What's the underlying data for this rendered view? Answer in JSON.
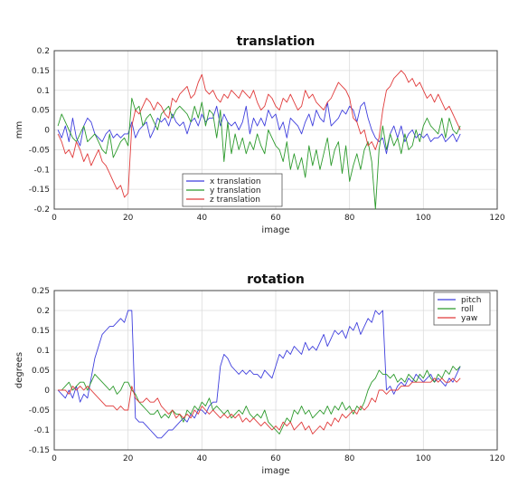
{
  "chart_data": [
    {
      "type": "line",
      "title": "translation",
      "xlabel": "image",
      "ylabel": "mm",
      "xlim": [
        0,
        120
      ],
      "ylim": [
        -0.2,
        0.2
      ],
      "xticks": [
        0,
        20,
        40,
        60,
        80,
        100,
        120
      ],
      "xtick_labels": [
        "0",
        "20",
        "40",
        "60",
        "80",
        "100",
        "120"
      ],
      "yticks": [
        -0.2,
        -0.15,
        -0.1,
        -0.05,
        0,
        0.05,
        0.1,
        0.15,
        0.2
      ],
      "ytick_labels": [
        "-0.2",
        "-0.15",
        "-0.1",
        "-0.05",
        "0",
        "0.05",
        "0.1",
        "0.15",
        "0.2"
      ],
      "grid": true,
      "legend_position": "bottom-center",
      "x": [
        1,
        2,
        3,
        4,
        5,
        6,
        7,
        8,
        9,
        10,
        11,
        12,
        13,
        14,
        15,
        16,
        17,
        18,
        19,
        20,
        21,
        22,
        23,
        24,
        25,
        26,
        27,
        28,
        29,
        30,
        31,
        32,
        33,
        34,
        35,
        36,
        37,
        38,
        39,
        40,
        41,
        42,
        43,
        44,
        45,
        46,
        47,
        48,
        49,
        50,
        51,
        52,
        53,
        54,
        55,
        56,
        57,
        58,
        59,
        60,
        61,
        62,
        63,
        64,
        65,
        66,
        67,
        68,
        69,
        70,
        71,
        72,
        73,
        74,
        75,
        76,
        77,
        78,
        79,
        80,
        81,
        82,
        83,
        84,
        85,
        86,
        87,
        88,
        89,
        90,
        91,
        92,
        93,
        94,
        95,
        96,
        97,
        98,
        99,
        100,
        101,
        102,
        103,
        104,
        105,
        106,
        107,
        108,
        109,
        110
      ],
      "series": [
        {
          "name": "x translation",
          "color": "#3f3fdd",
          "values": [
            0.0,
            -0.02,
            0.01,
            -0.03,
            0.03,
            -0.02,
            -0.04,
            0.01,
            0.03,
            0.02,
            -0.01,
            -0.02,
            -0.03,
            -0.01,
            0.0,
            -0.02,
            -0.01,
            -0.02,
            -0.01,
            -0.01,
            0.02,
            -0.02,
            0.0,
            0.01,
            0.02,
            -0.02,
            0.0,
            0.03,
            0.02,
            0.03,
            0.01,
            0.04,
            0.02,
            0.01,
            0.02,
            -0.01,
            0.02,
            0.03,
            0.01,
            0.04,
            0.02,
            0.03,
            0.03,
            0.06,
            0.01,
            0.04,
            0.02,
            0.01,
            0.02,
            0.0,
            0.02,
            0.06,
            -0.01,
            0.03,
            0.01,
            0.03,
            0.01,
            0.05,
            0.03,
            0.04,
            0.0,
            0.02,
            -0.02,
            0.03,
            0.02,
            0.01,
            -0.01,
            0.02,
            0.04,
            0.01,
            0.05,
            0.03,
            0.02,
            0.07,
            0.01,
            0.02,
            0.03,
            0.05,
            0.04,
            0.06,
            0.05,
            0.02,
            0.06,
            0.07,
            0.03,
            0.0,
            -0.02,
            -0.03,
            -0.02,
            -0.06,
            -0.01,
            0.01,
            -0.02,
            0.01,
            -0.03,
            -0.01,
            0.0,
            -0.02,
            -0.01,
            -0.02,
            -0.01,
            -0.03,
            -0.02,
            -0.02,
            -0.01,
            -0.03,
            -0.02,
            -0.01,
            -0.03,
            -0.01
          ]
        },
        {
          "name": "y translation",
          "color": "#2c9a2c",
          "values": [
            0.01,
            0.04,
            0.02,
            0.0,
            -0.02,
            -0.03,
            -0.01,
            0.01,
            -0.03,
            -0.02,
            -0.01,
            -0.03,
            -0.05,
            -0.06,
            -0.01,
            -0.07,
            -0.05,
            -0.03,
            -0.02,
            -0.04,
            0.08,
            0.05,
            0.06,
            0.01,
            0.03,
            0.04,
            0.02,
            0.0,
            0.04,
            0.05,
            0.06,
            0.03,
            0.05,
            0.06,
            0.05,
            0.04,
            0.02,
            0.06,
            0.03,
            0.07,
            0.01,
            0.05,
            0.04,
            -0.02,
            0.05,
            -0.08,
            0.02,
            -0.06,
            -0.01,
            -0.05,
            -0.02,
            -0.06,
            -0.03,
            -0.05,
            -0.01,
            -0.04,
            -0.06,
            0.0,
            -0.02,
            -0.04,
            -0.05,
            -0.08,
            -0.03,
            -0.1,
            -0.06,
            -0.1,
            -0.07,
            -0.12,
            -0.04,
            -0.09,
            -0.05,
            -0.1,
            -0.06,
            -0.02,
            -0.09,
            -0.05,
            -0.03,
            -0.11,
            -0.04,
            -0.13,
            -0.09,
            -0.06,
            -0.1,
            -0.05,
            -0.03,
            -0.08,
            -0.2,
            -0.05,
            0.01,
            -0.05,
            -0.01,
            -0.04,
            -0.02,
            -0.06,
            -0.01,
            -0.05,
            -0.04,
            0.0,
            -0.03,
            0.01,
            0.03,
            0.01,
            0.0,
            -0.01,
            0.03,
            -0.02,
            0.03,
            0.0,
            -0.01,
            0.01
          ]
        },
        {
          "name": "z translation",
          "color": "#e03a3a",
          "values": [
            -0.01,
            -0.03,
            -0.06,
            -0.05,
            -0.07,
            -0.03,
            -0.05,
            -0.08,
            -0.06,
            -0.09,
            -0.07,
            -0.05,
            -0.08,
            -0.09,
            -0.11,
            -0.13,
            -0.15,
            -0.14,
            -0.17,
            -0.16,
            0.01,
            0.05,
            0.04,
            0.06,
            0.08,
            0.07,
            0.05,
            0.07,
            0.06,
            0.04,
            0.03,
            0.08,
            0.07,
            0.09,
            0.1,
            0.11,
            0.08,
            0.09,
            0.12,
            0.14,
            0.1,
            0.09,
            0.1,
            0.08,
            0.07,
            0.09,
            0.08,
            0.1,
            0.09,
            0.08,
            0.1,
            0.09,
            0.08,
            0.1,
            0.07,
            0.05,
            0.06,
            0.09,
            0.08,
            0.06,
            0.05,
            0.08,
            0.07,
            0.09,
            0.07,
            0.05,
            0.06,
            0.1,
            0.08,
            0.09,
            0.07,
            0.06,
            0.05,
            0.07,
            0.08,
            0.1,
            0.12,
            0.11,
            0.1,
            0.08,
            0.03,
            0.02,
            -0.01,
            0.0,
            -0.04,
            -0.03,
            -0.05,
            -0.02,
            0.05,
            0.1,
            0.11,
            0.13,
            0.14,
            0.15,
            0.14,
            0.12,
            0.13,
            0.11,
            0.12,
            0.1,
            0.08,
            0.09,
            0.07,
            0.09,
            0.07,
            0.05,
            0.06,
            0.04,
            0.02,
            0.0
          ]
        }
      ]
    },
    {
      "type": "line",
      "title": "rotation",
      "xlabel": "image",
      "ylabel": "degrees",
      "xlim": [
        0,
        120
      ],
      "ylim": [
        -0.15,
        0.25
      ],
      "xticks": [
        0,
        20,
        40,
        60,
        80,
        100,
        120
      ],
      "xtick_labels": [
        "0",
        "20",
        "40",
        "60",
        "80",
        "100",
        "120"
      ],
      "yticks": [
        -0.15,
        -0.1,
        -0.05,
        0,
        0.05,
        0.1,
        0.15,
        0.2,
        0.25
      ],
      "ytick_labels": [
        "-0.15",
        "-0.1",
        "-0.05",
        "0",
        "0.05",
        "0.1",
        "0.15",
        "0.2",
        "0.25"
      ],
      "grid": true,
      "legend_position": "top-right",
      "x": [
        1,
        2,
        3,
        4,
        5,
        6,
        7,
        8,
        9,
        10,
        11,
        12,
        13,
        14,
        15,
        16,
        17,
        18,
        19,
        20,
        21,
        22,
        23,
        24,
        25,
        26,
        27,
        28,
        29,
        30,
        31,
        32,
        33,
        34,
        35,
        36,
        37,
        38,
        39,
        40,
        41,
        42,
        43,
        44,
        45,
        46,
        47,
        48,
        49,
        50,
        51,
        52,
        53,
        54,
        55,
        56,
        57,
        58,
        59,
        60,
        61,
        62,
        63,
        64,
        65,
        66,
        67,
        68,
        69,
        70,
        71,
        72,
        73,
        74,
        75,
        76,
        77,
        78,
        79,
        80,
        81,
        82,
        83,
        84,
        85,
        86,
        87,
        88,
        89,
        90,
        91,
        92,
        93,
        94,
        95,
        96,
        97,
        98,
        99,
        100,
        101,
        102,
        103,
        104,
        105,
        106,
        107,
        108,
        109,
        110
      ],
      "series": [
        {
          "name": "pitch",
          "color": "#3f3fdd",
          "values": [
            0.0,
            -0.01,
            -0.02,
            0.0,
            -0.02,
            0.01,
            -0.03,
            -0.01,
            -0.02,
            0.03,
            0.08,
            0.11,
            0.14,
            0.15,
            0.16,
            0.16,
            0.17,
            0.18,
            0.17,
            0.2,
            0.2,
            -0.07,
            -0.08,
            -0.08,
            -0.09,
            -0.1,
            -0.11,
            -0.12,
            -0.12,
            -0.11,
            -0.1,
            -0.1,
            -0.09,
            -0.08,
            -0.07,
            -0.08,
            -0.06,
            -0.07,
            -0.05,
            -0.05,
            -0.06,
            -0.04,
            -0.03,
            -0.03,
            0.06,
            0.09,
            0.08,
            0.06,
            0.05,
            0.04,
            0.05,
            0.04,
            0.05,
            0.04,
            0.04,
            0.03,
            0.05,
            0.04,
            0.03,
            0.06,
            0.09,
            0.08,
            0.1,
            0.09,
            0.11,
            0.1,
            0.09,
            0.12,
            0.1,
            0.11,
            0.1,
            0.12,
            0.14,
            0.11,
            0.13,
            0.15,
            0.14,
            0.15,
            0.13,
            0.16,
            0.15,
            0.17,
            0.14,
            0.16,
            0.18,
            0.17,
            0.2,
            0.19,
            0.2,
            0.0,
            0.01,
            -0.01,
            0.01,
            0.02,
            0.01,
            0.03,
            0.02,
            0.04,
            0.03,
            0.02,
            0.03,
            0.04,
            0.02,
            0.03,
            0.02,
            0.01,
            0.03,
            0.02,
            0.04,
            0.06
          ]
        },
        {
          "name": "roll",
          "color": "#2c9a2c",
          "values": [
            0.0,
            0.0,
            0.01,
            0.02,
            0.0,
            0.01,
            0.02,
            0.02,
            0.0,
            0.02,
            0.04,
            0.03,
            0.02,
            0.01,
            0.0,
            0.01,
            -0.01,
            0.0,
            0.02,
            0.02,
            0.0,
            -0.01,
            -0.03,
            -0.04,
            -0.05,
            -0.06,
            -0.06,
            -0.05,
            -0.07,
            -0.06,
            -0.07,
            -0.05,
            -0.06,
            -0.06,
            -0.08,
            -0.05,
            -0.06,
            -0.04,
            -0.05,
            -0.03,
            -0.04,
            -0.02,
            -0.05,
            -0.04,
            -0.05,
            -0.06,
            -0.05,
            -0.07,
            -0.06,
            -0.05,
            -0.06,
            -0.04,
            -0.06,
            -0.07,
            -0.06,
            -0.07,
            -0.05,
            -0.08,
            -0.09,
            -0.1,
            -0.11,
            -0.09,
            -0.07,
            -0.08,
            -0.05,
            -0.06,
            -0.04,
            -0.06,
            -0.05,
            -0.07,
            -0.06,
            -0.05,
            -0.06,
            -0.04,
            -0.06,
            -0.04,
            -0.05,
            -0.03,
            -0.05,
            -0.04,
            -0.06,
            -0.04,
            -0.05,
            -0.03,
            0.0,
            0.02,
            0.03,
            0.05,
            0.04,
            0.04,
            0.03,
            0.04,
            0.02,
            0.03,
            0.02,
            0.04,
            0.03,
            0.02,
            0.04,
            0.03,
            0.05,
            0.03,
            0.02,
            0.04,
            0.03,
            0.05,
            0.04,
            0.06,
            0.05,
            0.06
          ]
        },
        {
          "name": "yaw",
          "color": "#e03a3a",
          "values": [
            0.0,
            0.0,
            0.0,
            -0.01,
            0.01,
            0.0,
            0.01,
            0.0,
            0.01,
            0.0,
            -0.01,
            -0.02,
            -0.03,
            -0.04,
            -0.04,
            -0.04,
            -0.05,
            -0.04,
            -0.05,
            -0.05,
            0.01,
            -0.02,
            -0.03,
            -0.03,
            -0.02,
            -0.03,
            -0.03,
            -0.02,
            -0.04,
            -0.05,
            -0.06,
            -0.05,
            -0.07,
            -0.06,
            -0.07,
            -0.06,
            -0.07,
            -0.05,
            -0.06,
            -0.04,
            -0.05,
            -0.06,
            -0.05,
            -0.06,
            -0.07,
            -0.06,
            -0.07,
            -0.06,
            -0.07,
            -0.06,
            -0.08,
            -0.07,
            -0.08,
            -0.07,
            -0.08,
            -0.09,
            -0.08,
            -0.09,
            -0.1,
            -0.09,
            -0.1,
            -0.08,
            -0.09,
            -0.08,
            -0.1,
            -0.09,
            -0.08,
            -0.1,
            -0.09,
            -0.11,
            -0.1,
            -0.09,
            -0.1,
            -0.08,
            -0.09,
            -0.07,
            -0.08,
            -0.06,
            -0.07,
            -0.06,
            -0.05,
            -0.06,
            -0.04,
            -0.05,
            -0.04,
            -0.02,
            -0.03,
            0.0,
            0.0,
            -0.01,
            0.0,
            0.0,
            0.0,
            0.01,
            0.01,
            0.01,
            0.02,
            0.02,
            0.02,
            0.02,
            0.02,
            0.02,
            0.03,
            0.02,
            0.03,
            0.02,
            0.02,
            0.03,
            0.02,
            0.03
          ]
        }
      ]
    }
  ]
}
